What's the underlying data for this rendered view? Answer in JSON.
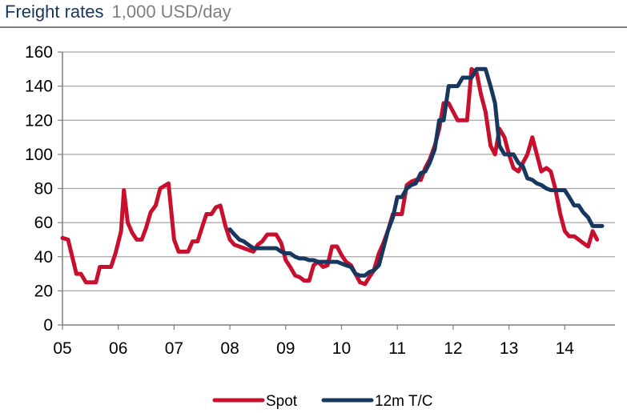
{
  "header": {
    "title": "Freight rates",
    "subtitle": "1,000 USD/day"
  },
  "colors": {
    "spot": "#C8102E",
    "tc": "#17375E",
    "axis": "#7F7F7F"
  },
  "chart_data": {
    "type": "line",
    "title": "Freight rates",
    "subtitle": "1,000 USD/day",
    "xlabel": "",
    "ylabel": "",
    "xlim": [
      2005.0,
      2014.9
    ],
    "ylim": [
      0,
      160
    ],
    "yticks": [
      0,
      20,
      40,
      60,
      80,
      100,
      120,
      140,
      160
    ],
    "xticks": [
      {
        "x": 2005,
        "label": "05"
      },
      {
        "x": 2006,
        "label": "06"
      },
      {
        "x": 2007,
        "label": "07"
      },
      {
        "x": 2008,
        "label": "08"
      },
      {
        "x": 2009,
        "label": "09"
      },
      {
        "x": 2010,
        "label": "10"
      },
      {
        "x": 2011,
        "label": "11"
      },
      {
        "x": 2012,
        "label": "12"
      },
      {
        "x": 2013,
        "label": "13"
      },
      {
        "x": 2014,
        "label": "14"
      }
    ],
    "grid": "horizontal",
    "legend": "bottom",
    "series": [
      {
        "name": "Spot",
        "color": "#C8102E",
        "points": [
          [
            2005.0,
            51
          ],
          [
            2005.1,
            50
          ],
          [
            2005.25,
            30
          ],
          [
            2005.33,
            30
          ],
          [
            2005.42,
            25
          ],
          [
            2005.6,
            25
          ],
          [
            2005.67,
            34
          ],
          [
            2005.87,
            34
          ],
          [
            2005.95,
            42
          ],
          [
            2006.05,
            55
          ],
          [
            2006.1,
            79
          ],
          [
            2006.17,
            60
          ],
          [
            2006.25,
            54
          ],
          [
            2006.33,
            50
          ],
          [
            2006.42,
            50
          ],
          [
            2006.5,
            57
          ],
          [
            2006.58,
            66
          ],
          [
            2006.67,
            70
          ],
          [
            2006.75,
            80
          ],
          [
            2006.85,
            82
          ],
          [
            2006.9,
            83
          ],
          [
            2007.0,
            50
          ],
          [
            2007.08,
            43
          ],
          [
            2007.17,
            43
          ],
          [
            2007.25,
            43
          ],
          [
            2007.33,
            49
          ],
          [
            2007.42,
            49
          ],
          [
            2007.5,
            57
          ],
          [
            2007.58,
            65
          ],
          [
            2007.67,
            65
          ],
          [
            2007.75,
            69
          ],
          [
            2007.83,
            70
          ],
          [
            2007.92,
            58
          ],
          [
            2008.0,
            50
          ],
          [
            2008.08,
            47
          ],
          [
            2008.17,
            46
          ],
          [
            2008.25,
            45
          ],
          [
            2008.33,
            44
          ],
          [
            2008.42,
            43
          ],
          [
            2008.5,
            47
          ],
          [
            2008.58,
            49
          ],
          [
            2008.67,
            53
          ],
          [
            2008.75,
            53
          ],
          [
            2008.83,
            53
          ],
          [
            2008.92,
            48
          ],
          [
            2009.0,
            38
          ],
          [
            2009.08,
            34
          ],
          [
            2009.17,
            29
          ],
          [
            2009.25,
            28
          ],
          [
            2009.33,
            26
          ],
          [
            2009.42,
            26
          ],
          [
            2009.5,
            35
          ],
          [
            2009.58,
            37
          ],
          [
            2009.67,
            34
          ],
          [
            2009.75,
            35
          ],
          [
            2009.83,
            46
          ],
          [
            2009.92,
            46
          ],
          [
            2010.0,
            41
          ],
          [
            2010.08,
            37
          ],
          [
            2010.17,
            35
          ],
          [
            2010.25,
            30
          ],
          [
            2010.33,
            25
          ],
          [
            2010.42,
            24
          ],
          [
            2010.5,
            28
          ],
          [
            2010.58,
            32
          ],
          [
            2010.67,
            42
          ],
          [
            2010.75,
            48
          ],
          [
            2010.83,
            55
          ],
          [
            2010.92,
            65
          ],
          [
            2011.0,
            65
          ],
          [
            2011.08,
            65
          ],
          [
            2011.17,
            82
          ],
          [
            2011.25,
            84
          ],
          [
            2011.33,
            85
          ],
          [
            2011.42,
            85
          ],
          [
            2011.5,
            92
          ],
          [
            2011.58,
            97
          ],
          [
            2011.67,
            105
          ],
          [
            2011.75,
            115
          ],
          [
            2011.83,
            130
          ],
          [
            2011.92,
            130
          ],
          [
            2012.0,
            125
          ],
          [
            2012.08,
            120
          ],
          [
            2012.17,
            120
          ],
          [
            2012.25,
            120
          ],
          [
            2012.33,
            150
          ],
          [
            2012.42,
            148
          ],
          [
            2012.5,
            135
          ],
          [
            2012.58,
            125
          ],
          [
            2012.67,
            105
          ],
          [
            2012.75,
            100
          ],
          [
            2012.83,
            115
          ],
          [
            2012.92,
            110
          ],
          [
            2013.0,
            100
          ],
          [
            2013.08,
            92
          ],
          [
            2013.17,
            90
          ],
          [
            2013.25,
            95
          ],
          [
            2013.33,
            100
          ],
          [
            2013.42,
            110
          ],
          [
            2013.5,
            100
          ],
          [
            2013.58,
            90
          ],
          [
            2013.67,
            92
          ],
          [
            2013.75,
            90
          ],
          [
            2013.83,
            80
          ],
          [
            2013.92,
            65
          ],
          [
            2014.0,
            55
          ],
          [
            2014.08,
            52
          ],
          [
            2014.17,
            52
          ],
          [
            2014.25,
            50
          ],
          [
            2014.33,
            48
          ],
          [
            2014.42,
            46
          ],
          [
            2014.5,
            55
          ],
          [
            2014.58,
            50
          ]
        ]
      },
      {
        "name": "12m T/C",
        "color": "#17375E",
        "points": [
          [
            2008.0,
            56
          ],
          [
            2008.08,
            53
          ],
          [
            2008.17,
            50
          ],
          [
            2008.25,
            49
          ],
          [
            2008.33,
            47
          ],
          [
            2008.42,
            45
          ],
          [
            2008.5,
            45
          ],
          [
            2008.58,
            45
          ],
          [
            2008.67,
            45
          ],
          [
            2008.75,
            45
          ],
          [
            2008.83,
            45
          ],
          [
            2008.92,
            43
          ],
          [
            2009.0,
            42
          ],
          [
            2009.08,
            42
          ],
          [
            2009.17,
            40
          ],
          [
            2009.25,
            39
          ],
          [
            2009.33,
            39
          ],
          [
            2009.42,
            38
          ],
          [
            2009.5,
            38
          ],
          [
            2009.58,
            37
          ],
          [
            2009.67,
            37
          ],
          [
            2009.75,
            37
          ],
          [
            2009.83,
            37
          ],
          [
            2009.92,
            37
          ],
          [
            2010.0,
            36
          ],
          [
            2010.08,
            35
          ],
          [
            2010.17,
            34
          ],
          [
            2010.25,
            30
          ],
          [
            2010.33,
            29
          ],
          [
            2010.42,
            29
          ],
          [
            2010.5,
            31
          ],
          [
            2010.58,
            32
          ],
          [
            2010.67,
            35
          ],
          [
            2010.75,
            45
          ],
          [
            2010.83,
            55
          ],
          [
            2010.92,
            63
          ],
          [
            2011.0,
            75
          ],
          [
            2011.08,
            75
          ],
          [
            2011.17,
            80
          ],
          [
            2011.25,
            82
          ],
          [
            2011.33,
            83
          ],
          [
            2011.42,
            89
          ],
          [
            2011.5,
            90
          ],
          [
            2011.58,
            95
          ],
          [
            2011.67,
            103
          ],
          [
            2011.75,
            120
          ],
          [
            2011.83,
            120
          ],
          [
            2011.92,
            140
          ],
          [
            2012.0,
            140
          ],
          [
            2012.08,
            140
          ],
          [
            2012.17,
            145
          ],
          [
            2012.25,
            145
          ],
          [
            2012.33,
            145
          ],
          [
            2012.42,
            150
          ],
          [
            2012.5,
            150
          ],
          [
            2012.58,
            150
          ],
          [
            2012.67,
            140
          ],
          [
            2012.75,
            130
          ],
          [
            2012.83,
            105
          ],
          [
            2012.92,
            100
          ],
          [
            2013.0,
            100
          ],
          [
            2013.08,
            100
          ],
          [
            2013.17,
            95
          ],
          [
            2013.25,
            93
          ],
          [
            2013.33,
            86
          ],
          [
            2013.42,
            85
          ],
          [
            2013.5,
            83
          ],
          [
            2013.58,
            82
          ],
          [
            2013.67,
            80
          ],
          [
            2013.75,
            79
          ],
          [
            2013.83,
            79
          ],
          [
            2013.92,
            79
          ],
          [
            2014.0,
            79
          ],
          [
            2014.08,
            75
          ],
          [
            2014.17,
            70
          ],
          [
            2014.25,
            70
          ],
          [
            2014.33,
            66
          ],
          [
            2014.42,
            63
          ],
          [
            2014.5,
            58
          ],
          [
            2014.58,
            58
          ],
          [
            2014.67,
            58
          ]
        ]
      }
    ]
  }
}
